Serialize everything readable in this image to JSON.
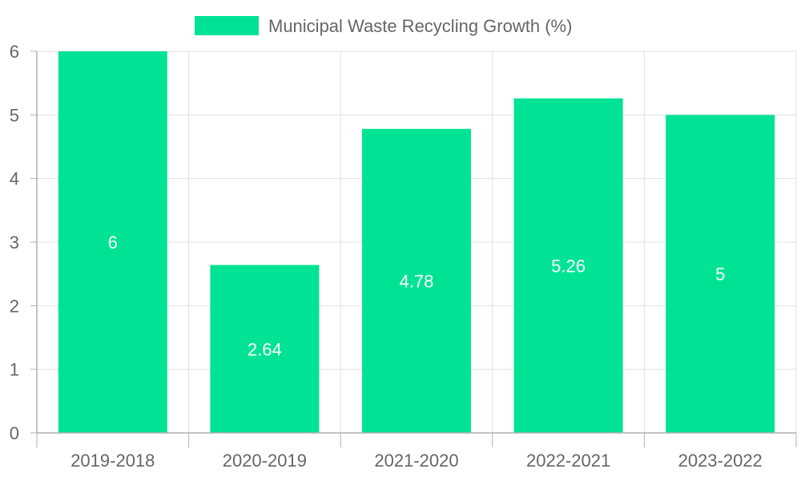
{
  "chart_data": {
    "type": "bar",
    "categories": [
      "2019-2018",
      "2020-2019",
      "2021-2020",
      "2022-2021",
      "2023-2022"
    ],
    "series": [
      {
        "name": "Municipal Waste Recycling Growth (%)",
        "values": [
          6,
          2.64,
          4.78,
          5.26,
          5
        ],
        "color": "#00e394"
      }
    ],
    "data_labels": [
      "6",
      "2.64",
      "4.78",
      "5.26",
      "5"
    ],
    "y_ticks": [
      "0",
      "1",
      "2",
      "3",
      "4",
      "5",
      "6"
    ],
    "ylim": [
      0,
      6
    ],
    "grid": true,
    "legend_position": "top",
    "colors": {
      "bar": "#00e394",
      "grid": "#e0e0e0",
      "axis": "#b0b0b0",
      "tick_text": "#666666",
      "label_text": "#ffffff"
    }
  }
}
